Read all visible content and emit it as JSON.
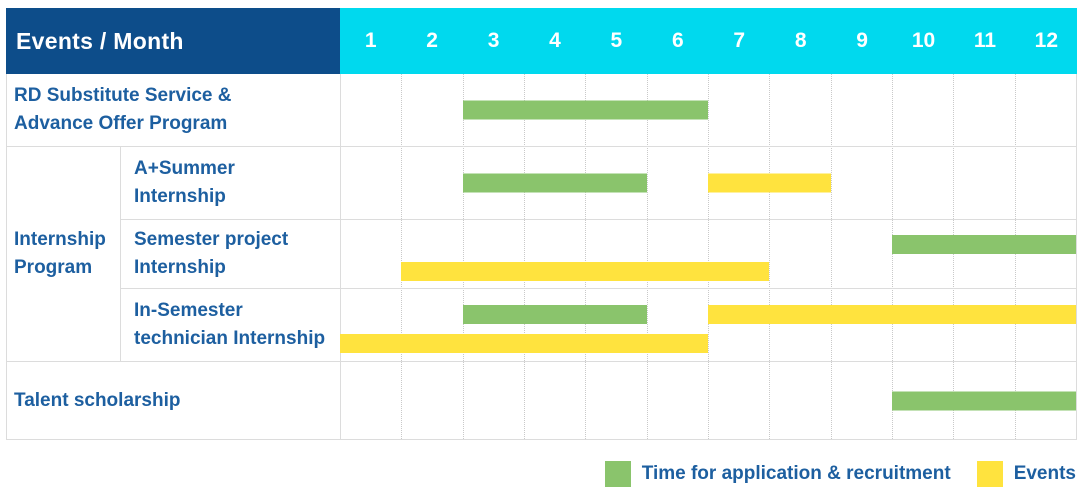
{
  "header": {
    "title": "Events / Month",
    "months": [
      "1",
      "2",
      "3",
      "4",
      "5",
      "6",
      "7",
      "8",
      "9",
      "10",
      "11",
      "12"
    ]
  },
  "group": {
    "label": [
      "Internship",
      "Program"
    ]
  },
  "rows": [
    {
      "label": [
        "RD Substitute Service &",
        "Advance Offer Program"
      ],
      "lines": 1,
      "bars": [
        {
          "color": "green",
          "start": 3,
          "end": 6,
          "line": 0
        }
      ]
    },
    {
      "label": [
        "A+Summer",
        "Internship"
      ],
      "lines": 1,
      "bars": [
        {
          "color": "green",
          "start": 3,
          "end": 5,
          "line": 0
        },
        {
          "color": "yellow",
          "start": 7,
          "end": 8,
          "line": 0
        }
      ]
    },
    {
      "label": [
        "Semester project",
        "Internship"
      ],
      "lines": 2,
      "bars": [
        {
          "color": "green",
          "start": 10,
          "end": 12,
          "line": 0
        },
        {
          "color": "yellow",
          "start": 2,
          "end": 7,
          "line": 1
        }
      ]
    },
    {
      "label": [
        "In-Semester",
        "technician Internship"
      ],
      "lines": 2,
      "bars": [
        {
          "color": "green",
          "start": 3,
          "end": 5,
          "line": 0
        },
        {
          "color": "yellow",
          "start": 7,
          "end": 12,
          "line": 0
        },
        {
          "color": "yellow",
          "start": 1,
          "end": 6,
          "line": 1
        }
      ]
    },
    {
      "label": [
        "Talent scholarship"
      ],
      "lines": 1,
      "bars": [
        {
          "color": "green",
          "start": 10,
          "end": 12,
          "line": 0
        }
      ]
    }
  ],
  "legend": {
    "items": [
      {
        "key": "green",
        "label": "Time for application & recruitment"
      },
      {
        "key": "yellow",
        "label": "Events"
      }
    ]
  },
  "colors": {
    "navy": "#0d4d8a",
    "cyan": "#00d9ee",
    "green": "#8ac46c",
    "yellow": "#ffe33e",
    "label_blue": "#1d5fa0",
    "grid_solid": "#dcdcdc",
    "grid_dotted": "#c9c9c9"
  },
  "chart_data": {
    "type": "bar",
    "subtype": "gantt",
    "title": "Events / Month",
    "xlabel": "Month",
    "x_axis": {
      "ticks": [
        1,
        2,
        3,
        4,
        5,
        6,
        7,
        8,
        9,
        10,
        11,
        12
      ],
      "range": [
        1,
        12
      ]
    },
    "grid": true,
    "legend_position": "bottom-right",
    "legend": [
      "Time for application & recruitment",
      "Events"
    ],
    "rows": [
      {
        "event": "RD Substitute Service & Advance Offer Program",
        "group": null,
        "application_recruitment_months": [
          [
            3,
            6
          ]
        ],
        "events_months": []
      },
      {
        "event": "A+Summer Internship",
        "group": "Internship Program",
        "application_recruitment_months": [
          [
            3,
            5
          ]
        ],
        "events_months": [
          [
            7,
            8
          ]
        ]
      },
      {
        "event": "Semester project Internship",
        "group": "Internship Program",
        "application_recruitment_months": [
          [
            10,
            12
          ]
        ],
        "events_months": [
          [
            2,
            7
          ]
        ]
      },
      {
        "event": "In-Semester technician Internship",
        "group": "Internship Program",
        "application_recruitment_months": [
          [
            3,
            5
          ]
        ],
        "events_months": [
          [
            7,
            12
          ],
          [
            1,
            6
          ]
        ]
      },
      {
        "event": "Talent scholarship",
        "group": null,
        "application_recruitment_months": [
          [
            10,
            12
          ]
        ],
        "events_months": []
      }
    ]
  }
}
